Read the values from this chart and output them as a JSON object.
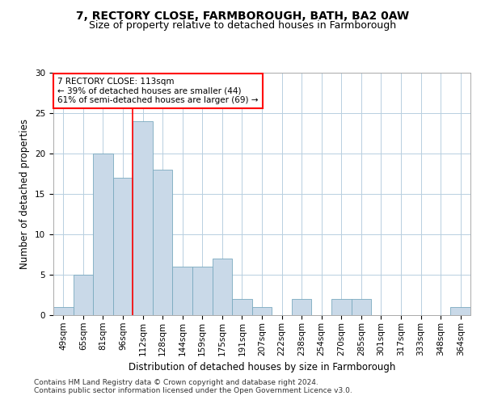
{
  "title1": "7, RECTORY CLOSE, FARMBOROUGH, BATH, BA2 0AW",
  "title2": "Size of property relative to detached houses in Farmborough",
  "xlabel": "Distribution of detached houses by size in Farmborough",
  "ylabel": "Number of detached properties",
  "categories": [
    "49sqm",
    "65sqm",
    "81sqm",
    "96sqm",
    "112sqm",
    "128sqm",
    "144sqm",
    "159sqm",
    "175sqm",
    "191sqm",
    "207sqm",
    "222sqm",
    "238sqm",
    "254sqm",
    "270sqm",
    "285sqm",
    "301sqm",
    "317sqm",
    "333sqm",
    "348sqm",
    "364sqm"
  ],
  "values": [
    1,
    5,
    20,
    17,
    24,
    18,
    6,
    6,
    7,
    2,
    1,
    0,
    2,
    0,
    2,
    2,
    0,
    0,
    0,
    0,
    1
  ],
  "bar_color": "#c9d9e8",
  "bar_edge_color": "#7aaabf",
  "vline_index": 4,
  "annotation_text": "7 RECTORY CLOSE: 113sqm\n← 39% of detached houses are smaller (44)\n61% of semi-detached houses are larger (69) →",
  "annotation_box_color": "white",
  "annotation_box_edge_color": "red",
  "vline_color": "red",
  "ylim": [
    0,
    30
  ],
  "yticks": [
    0,
    5,
    10,
    15,
    20,
    25,
    30
  ],
  "grid_color": "#b8cfe0",
  "background_color": "white",
  "footer1": "Contains HM Land Registry data © Crown copyright and database right 2024.",
  "footer2": "Contains public sector information licensed under the Open Government Licence v3.0.",
  "title1_fontsize": 10,
  "title2_fontsize": 9,
  "xlabel_fontsize": 8.5,
  "ylabel_fontsize": 8.5,
  "tick_fontsize": 7.5,
  "annotation_fontsize": 7.5,
  "footer_fontsize": 6.5
}
